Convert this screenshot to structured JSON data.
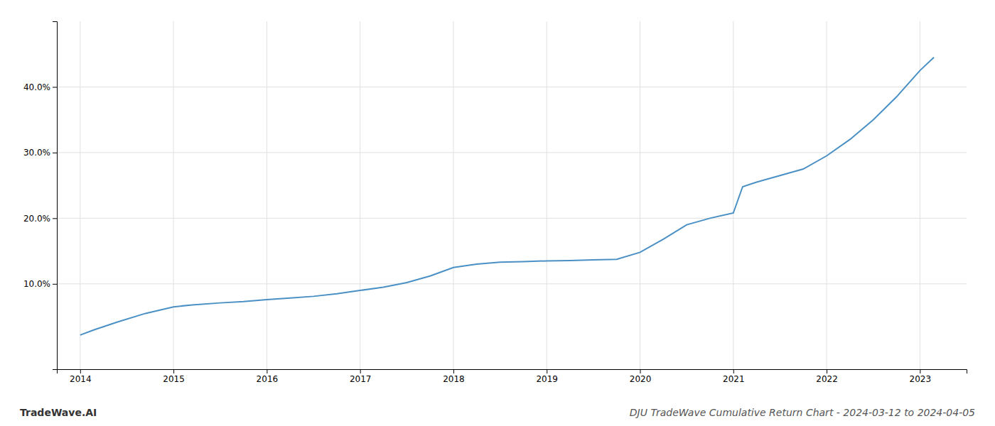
{
  "chart_data": {
    "type": "line",
    "title": "DJU TradeWave Cumulative Return Chart - 2024-03-12 to 2024-04-05",
    "annotations": [
      "TradeWave.AI"
    ],
    "x": [
      2014.0,
      2014.15,
      2014.4,
      2014.7,
      2015.0,
      2015.2,
      2015.5,
      2015.75,
      2016.0,
      2016.25,
      2016.5,
      2016.75,
      2017.0,
      2017.25,
      2017.5,
      2017.75,
      2018.0,
      2018.25,
      2018.5,
      2018.75,
      2019.0,
      2019.25,
      2019.5,
      2019.75,
      2020.0,
      2020.25,
      2020.5,
      2020.75,
      2021.0,
      2021.1,
      2021.25,
      2021.5,
      2021.75,
      2022.0,
      2022.25,
      2022.5,
      2022.75,
      2023.0,
      2023.15
    ],
    "values": [
      2.2,
      3.0,
      4.2,
      5.5,
      6.5,
      6.8,
      7.1,
      7.3,
      7.6,
      7.85,
      8.1,
      8.5,
      9.0,
      9.5,
      10.2,
      11.2,
      12.5,
      13.0,
      13.3,
      13.4,
      13.5,
      13.55,
      13.65,
      13.75,
      14.8,
      16.8,
      19.0,
      20.0,
      20.8,
      24.8,
      25.5,
      26.5,
      27.5,
      29.5,
      32.0,
      35.0,
      38.5,
      42.5,
      44.5
    ],
    "color": "#4a90c4",
    "xlim": [
      2013.75,
      2023.5
    ],
    "xticks": [
      2014,
      2015,
      2016,
      2017,
      2018,
      2019,
      2020,
      2021,
      2022,
      2023
    ],
    "ylim": [
      -3,
      50
    ],
    "yticks": [
      {
        "value": 10.0,
        "label": "10.0%"
      },
      {
        "value": 20.0,
        "label": "20.0%"
      },
      {
        "value": 30.0,
        "label": "30.0%"
      },
      {
        "value": 40.0,
        "label": "40.0%"
      }
    ],
    "grid": true
  }
}
